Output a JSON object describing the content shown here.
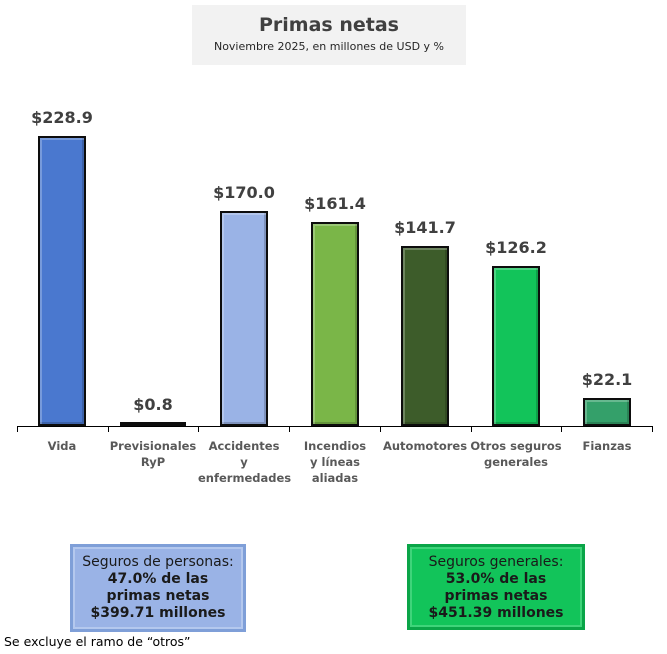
{
  "header": {
    "title": "Primas netas",
    "subtitle": "Noviembre 2025, en millones de USD y %"
  },
  "chart_data": {
    "type": "bar",
    "title": "Primas netas",
    "subtitle": "Noviembre 2025, en millones de USD y %",
    "xlabel": "",
    "ylabel": "",
    "ylim": [
      0,
      230
    ],
    "grid": false,
    "legend": "none",
    "categories": [
      "Vida",
      "Previsionales RyP",
      "Accidentes y enfermedades",
      "Incendios y líneas aliadas",
      "Automotores",
      "Otros seguros generales",
      "Fianzas"
    ],
    "values": [
      228.9,
      0.8,
      170.0,
      161.4,
      141.7,
      126.2,
      22.1
    ],
    "value_labels": [
      "$228.9",
      "$0.8",
      "$170.0",
      "$161.4",
      "$141.7",
      "$126.2",
      "$22.1"
    ],
    "colors": [
      "#4a78cf",
      "#1f3864",
      "#9ab3e6",
      "#7ab648",
      "#3d5c2a",
      "#12c45a",
      "#34a06a"
    ],
    "annotations": [
      "Seguros de personas: 47.0% de las primas netas $399.71 millones",
      "Seguros generales: 53.0% de las primas netas $451.39 millones",
      "Se excluye el ramo de “otros”"
    ]
  },
  "bars": [
    {
      "label_lines": [
        "Vida"
      ],
      "value_label": "$228.9",
      "value": 228.9,
      "color": "#4a78cf"
    },
    {
      "label_lines": [
        "Previsionales",
        "RyP"
      ],
      "value_label": "$0.8",
      "value": 0.8,
      "color": "#1f3864"
    },
    {
      "label_lines": [
        "Accidentes",
        "y",
        "enfermedades"
      ],
      "value_label": "$170.0",
      "value": 170.0,
      "color": "#9ab3e6"
    },
    {
      "label_lines": [
        "Incendios",
        "y  líneas",
        "aliadas"
      ],
      "value_label": "$161.4",
      "value": 161.4,
      "color": "#7ab648"
    },
    {
      "label_lines": [
        "Automotores"
      ],
      "value_label": "$141.7",
      "value": 141.7,
      "color": "#3d5c2a"
    },
    {
      "label_lines": [
        "Otros seguros",
        "generales"
      ],
      "value_label": "$126.2",
      "value": 126.2,
      "color": "#12c45a"
    },
    {
      "label_lines": [
        "Fianzas"
      ],
      "value_label": "$22.1",
      "value": 22.1,
      "color": "#34a06a"
    }
  ],
  "summary": {
    "personas": {
      "line1": "Seguros de personas:",
      "line2": "47.0% de las",
      "line3": "primas netas",
      "line4": "$399.71 millones"
    },
    "generales": {
      "line1": "Seguros generales:",
      "line2": "53.0% de las",
      "line3": "primas netas",
      "line4": "$451.39 millones"
    }
  },
  "footnote": "Se excluye el ramo de “otros”"
}
